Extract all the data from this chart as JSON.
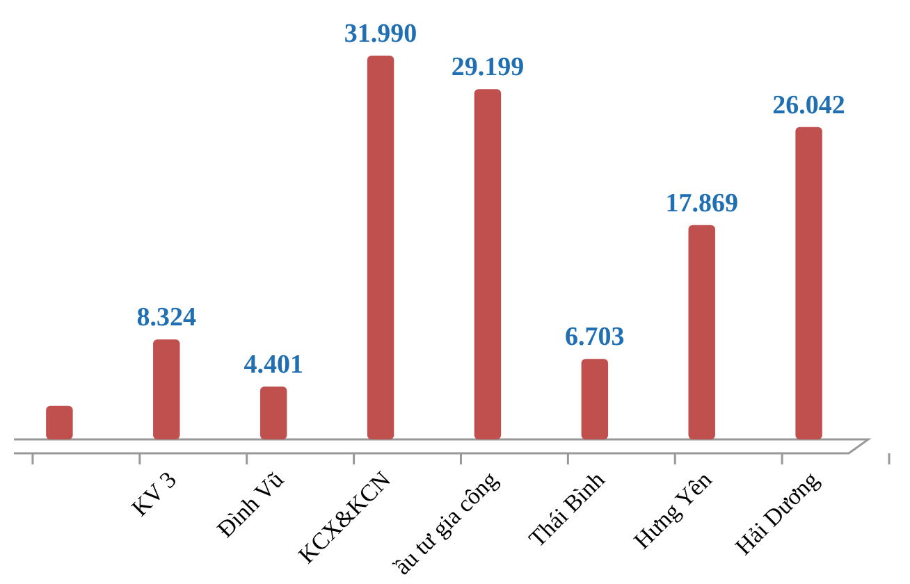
{
  "chart_data": {
    "type": "bar",
    "categories": [
      null,
      "KV 3",
      "Đình Vũ",
      "KCX&KCN",
      "ầu tư gia công",
      "Thái Bình",
      "Hưng Yên",
      "Hải Dương"
    ],
    "values": [
      2.8,
      8.324,
      4.401,
      31.99,
      29.199,
      6.703,
      17.869,
      26.042
    ],
    "value_labels": [
      null,
      "8.324",
      "4.401",
      "31.990",
      "29.199",
      "6.703",
      "17.869",
      "26.042"
    ],
    "color": "#c0504d"
  }
}
